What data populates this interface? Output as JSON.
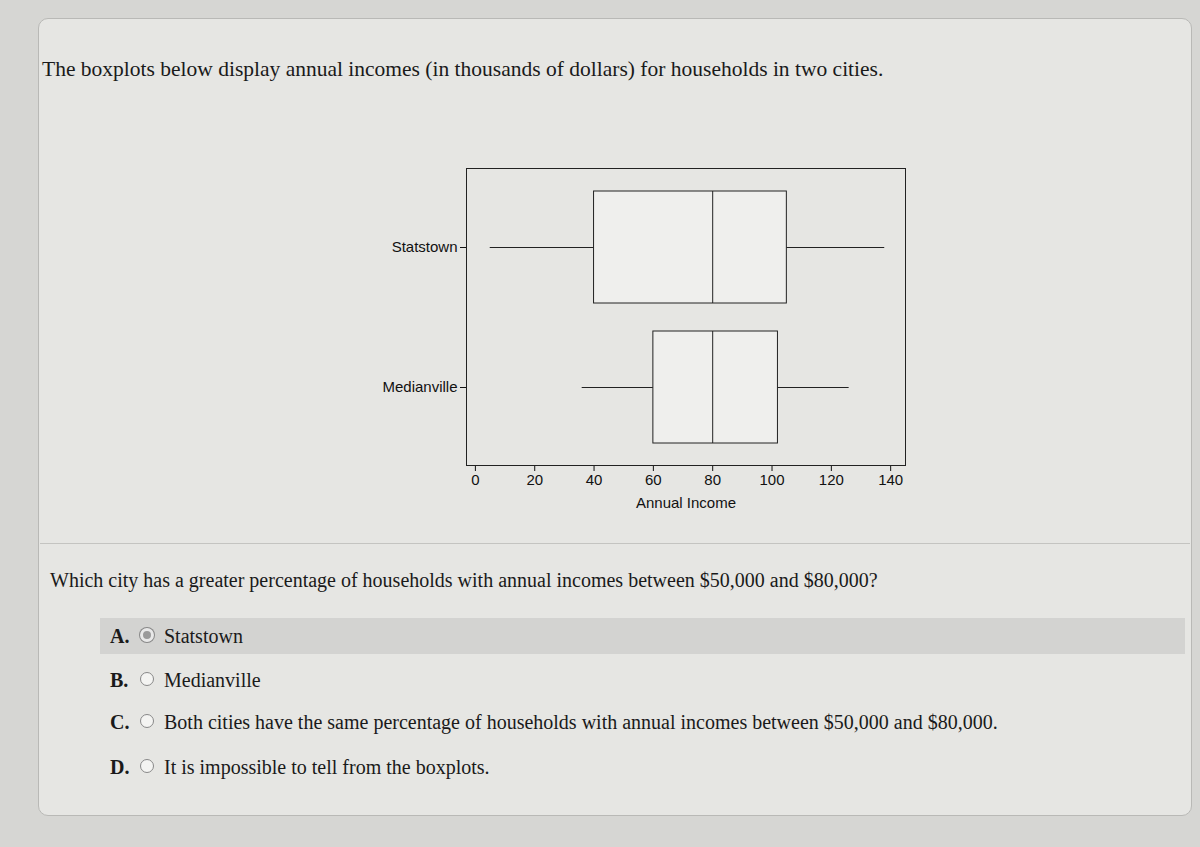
{
  "chart_data": {
    "type": "boxplot",
    "orientation": "horizontal",
    "xlabel": "Annual Income",
    "xlim": [
      -3,
      145
    ],
    "xticks": [
      0,
      20,
      40,
      60,
      80,
      100,
      120,
      140
    ],
    "boxes": [
      {
        "name": "Statstown",
        "min": 5,
        "q1": 40,
        "median": 80,
        "q3": 105,
        "max": 138
      },
      {
        "name": "Medianville",
        "min": 36,
        "q1": 60,
        "median": 80,
        "q3": 102,
        "max": 126
      }
    ]
  },
  "intro": "The boxplots below display annual incomes (in thousands of dollars) for households in two cities.",
  "prompt": "Which city has a greater percentage of households with annual incomes between $50,000 and $80,000?",
  "options": [
    {
      "letter": "A.",
      "text": "Statstown",
      "selected": true
    },
    {
      "letter": "B.",
      "text": "Medianville",
      "selected": false
    },
    {
      "letter": "C.",
      "text": "Both cities have the same percentage of households with annual incomes between $50,000 and $80,000.",
      "selected": false
    },
    {
      "letter": "D.",
      "text": "It is impossible to tell from the boxplots.",
      "selected": false
    }
  ]
}
